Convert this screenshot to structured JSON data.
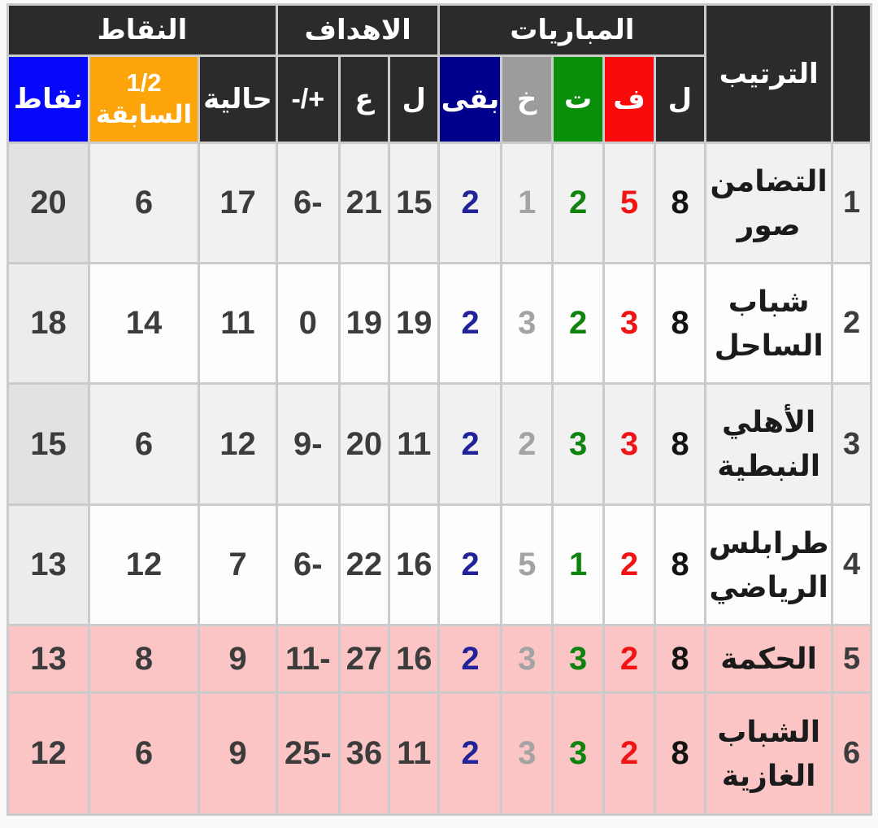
{
  "page": {
    "background": "#FAFAFA",
    "grid_border_color": "#CBCBCB"
  },
  "table": {
    "direction": "rtl",
    "group_labels": {
      "standings": "الترتيب",
      "matches": "المباريات",
      "goals": "الاهداف",
      "points": "النقاط"
    },
    "header_colors": {
      "dark": "#2B2B2B",
      "text": "#FFFFFF",
      "won_red": "#FA0A0A",
      "drawn_green": "#0A8F0A",
      "lost_gray": "#9C9C9C",
      "remaining_navy": "#00008C",
      "points_blue": "#0707FA",
      "previous_orange": "#FCA40A"
    },
    "columns": [
      {
        "key": "rank",
        "label": "",
        "header_bg": "#2B2B2B",
        "data_color": "#3C3C3C"
      },
      {
        "key": "team",
        "label": "الترتيب",
        "header_bg": "#2B2B2B",
        "data_color": "#1B1B1B"
      },
      {
        "key": "played",
        "label": "ل",
        "header_bg": "#2B2B2B",
        "data_color": "#141414"
      },
      {
        "key": "won",
        "label": "ف",
        "header_bg": "#FA0A0A",
        "data_color": "#F01414"
      },
      {
        "key": "drawn",
        "label": "ت",
        "header_bg": "#0A8F0A",
        "data_color": "#0E830E"
      },
      {
        "key": "lost",
        "label": "خ",
        "header_bg": "#9C9C9C",
        "data_color": "#A3A3A3"
      },
      {
        "key": "remaining",
        "label": "بقى",
        "header_bg": "#00008C",
        "data_color": "#222299"
      },
      {
        "key": "goals_for",
        "label": "ل",
        "header_bg": "#2B2B2B",
        "data_color": "#3C3C3C"
      },
      {
        "key": "goals_against",
        "label": "ع",
        "header_bg": "#2B2B2B",
        "data_color": "#3C3C3C"
      },
      {
        "key": "diff",
        "label": "-/+",
        "header_bg": "#2B2B2B",
        "data_color": "#3C3C3C",
        "ltr": true
      },
      {
        "key": "current",
        "label": "حالية",
        "header_bg": "#2B2B2B",
        "data_color": "#3C3C3C"
      },
      {
        "key": "previous",
        "label": "1/2",
        "label2": "السابقة",
        "header_bg": "#FCA40A",
        "data_color": "#3C3C3C"
      },
      {
        "key": "points",
        "label": "نقاط",
        "header_bg": "#0707FA",
        "data_color": "#3C3C3C",
        "shaded": true
      }
    ],
    "row_backgrounds": {
      "gray": "#F1F1F1",
      "white": "#FDFDFD",
      "pink": "#FBC5C6"
    },
    "shaded_first_col": {
      "gray": "#E2E2E2",
      "white": "#ECECEC"
    },
    "rows": [
      {
        "rank": "1",
        "team": "التضامن صور",
        "played": "8",
        "won": "5",
        "drawn": "2",
        "lost": "1",
        "remaining": "2",
        "goals_for": "15",
        "goals_against": "21",
        "diff": "6-",
        "current": "17",
        "previous": "6",
        "points": "20",
        "bg": "gray"
      },
      {
        "rank": "2",
        "team": "شباب الساحل",
        "played": "8",
        "won": "3",
        "drawn": "2",
        "lost": "3",
        "remaining": "2",
        "goals_for": "19",
        "goals_against": "19",
        "diff": "0",
        "current": "11",
        "previous": "14",
        "points": "18",
        "bg": "white"
      },
      {
        "rank": "3",
        "team": "الأهلي النبطية",
        "played": "8",
        "won": "3",
        "drawn": "3",
        "lost": "2",
        "remaining": "2",
        "goals_for": "11",
        "goals_against": "20",
        "diff": "9-",
        "current": "12",
        "previous": "6",
        "points": "15",
        "bg": "gray"
      },
      {
        "rank": "4",
        "team": "طرابلس الرياضي",
        "played": "8",
        "won": "2",
        "drawn": "1",
        "lost": "5",
        "remaining": "2",
        "goals_for": "16",
        "goals_against": "22",
        "diff": "6-",
        "current": "7",
        "previous": "12",
        "points": "13",
        "bg": "white"
      },
      {
        "rank": "5",
        "team": "الحكمة",
        "played": "8",
        "won": "2",
        "drawn": "3",
        "lost": "3",
        "remaining": "2",
        "goals_for": "16",
        "goals_against": "27",
        "diff": "11-",
        "current": "9",
        "previous": "8",
        "points": "13",
        "bg": "pink"
      },
      {
        "rank": "6",
        "team": "الشباب الغازية",
        "played": "8",
        "won": "2",
        "drawn": "3",
        "lost": "3",
        "remaining": "2",
        "goals_for": "11",
        "goals_against": "36",
        "diff": "25-",
        "current": "9",
        "previous": "6",
        "points": "12",
        "bg": "pink"
      }
    ]
  }
}
